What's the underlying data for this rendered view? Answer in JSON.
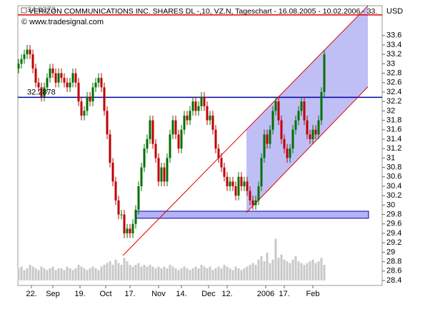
{
  "chart_data": {
    "type": "candlestick",
    "title": "VERIZON COMMUNICATIONS INC. SHARES DL -,10, VZ.N, Tageschart - 16.08.2005 - 10.02.2006 - 33.",
    "currency": "USD",
    "source": "© www.tradesignal.com",
    "up_color": "#007000",
    "down_color": "#c00000",
    "volume_color": "#c8c8c8",
    "open": [
      32.9,
      33.0,
      33.1,
      33.2,
      33.3,
      33.2,
      32.9,
      32.6,
      32.5,
      32.3,
      32.5,
      32.7,
      32.9,
      32.8,
      32.6,
      32.8,
      32.7,
      32.6,
      32.5,
      32.6,
      32.8,
      32.6,
      32.2,
      31.9,
      32.0,
      32.3,
      32.2,
      32.5,
      32.6,
      32.7,
      32.5,
      32.0,
      31.5,
      30.9,
      30.5,
      30.1,
      29.8,
      29.8,
      29.4,
      29.5,
      29.4,
      29.6,
      29.9,
      30.4,
      30.8,
      31.2,
      31.4,
      31.8,
      31.3,
      31.0,
      30.5,
      30.8,
      30.5,
      31.0,
      31.5,
      31.8,
      31.5,
      31.2,
      31.6,
      31.9,
      31.8,
      32.0,
      32.2,
      32.0,
      32.1,
      32.3,
      32.1,
      31.8,
      31.9,
      31.6,
      31.2,
      31.0,
      30.8,
      30.6,
      30.4,
      30.5,
      30.4,
      30.2,
      30.6,
      30.4,
      30.5,
      30.3,
      30.1,
      30.0,
      30.1,
      30.4,
      31.0,
      31.5,
      31.3,
      31.6,
      32.0,
      32.2,
      31.8,
      31.4,
      31.2,
      31.0,
      31.2,
      31.6,
      31.8,
      32.0,
      32.2,
      31.8,
      31.5,
      31.4,
      31.6,
      31.5,
      31.8,
      32.4
    ],
    "high": [
      33.1,
      33.2,
      33.3,
      33.4,
      33.4,
      33.3,
      33.0,
      32.7,
      32.6,
      32.6,
      32.8,
      33.0,
      33.0,
      32.9,
      32.9,
      32.9,
      32.8,
      32.7,
      32.7,
      32.9,
      32.9,
      32.7,
      32.3,
      32.1,
      32.4,
      32.4,
      32.6,
      32.7,
      32.8,
      32.8,
      32.6,
      32.1,
      31.6,
      31.0,
      30.6,
      30.2,
      29.9,
      29.9,
      29.6,
      29.6,
      29.7,
      30.0,
      30.5,
      30.9,
      31.3,
      31.5,
      31.9,
      31.9,
      31.4,
      31.1,
      30.9,
      30.9,
      31.1,
      31.6,
      31.9,
      31.9,
      31.6,
      31.7,
      32.0,
      32.0,
      32.1,
      32.3,
      32.3,
      32.2,
      32.4,
      32.4,
      32.2,
      32.0,
      32.0,
      31.7,
      31.3,
      31.1,
      30.9,
      30.7,
      30.6,
      30.6,
      30.5,
      30.7,
      30.7,
      30.6,
      30.6,
      30.4,
      30.2,
      30.2,
      30.5,
      31.1,
      31.6,
      31.6,
      31.7,
      32.1,
      32.3,
      32.3,
      31.9,
      31.5,
      31.3,
      31.3,
      31.7,
      31.9,
      32.1,
      32.3,
      32.3,
      31.9,
      31.6,
      31.7,
      31.7,
      31.9,
      32.5,
      33.3
    ],
    "low": [
      32.8,
      32.9,
      33.0,
      33.1,
      33.1,
      32.8,
      32.5,
      32.4,
      32.2,
      32.2,
      32.4,
      32.6,
      32.7,
      32.5,
      32.5,
      32.6,
      32.5,
      32.4,
      32.4,
      32.5,
      32.5,
      32.1,
      31.8,
      31.8,
      31.9,
      32.1,
      32.1,
      32.4,
      32.5,
      32.4,
      31.9,
      31.4,
      30.8,
      30.4,
      30.0,
      29.7,
      29.7,
      29.3,
      29.3,
      29.3,
      29.3,
      29.5,
      29.8,
      30.3,
      30.7,
      31.1,
      31.3,
      31.2,
      30.9,
      30.4,
      30.4,
      30.4,
      30.4,
      30.9,
      31.4,
      31.4,
      31.1,
      31.1,
      31.5,
      31.7,
      31.7,
      31.9,
      31.9,
      31.9,
      32.0,
      32.0,
      31.7,
      31.7,
      31.5,
      31.1,
      30.9,
      30.7,
      30.5,
      30.3,
      30.3,
      30.3,
      30.1,
      30.1,
      30.3,
      30.3,
      30.2,
      30.0,
      29.9,
      29.9,
      30.0,
      30.3,
      30.9,
      31.2,
      31.2,
      31.5,
      31.9,
      31.7,
      31.3,
      31.1,
      30.9,
      30.9,
      31.1,
      31.5,
      31.7,
      31.9,
      31.7,
      31.4,
      31.3,
      31.3,
      31.4,
      31.4,
      31.7,
      32.3
    ],
    "close": [
      33.0,
      33.1,
      33.2,
      33.3,
      33.2,
      32.9,
      32.6,
      32.5,
      32.3,
      32.5,
      32.7,
      32.9,
      32.8,
      32.6,
      32.8,
      32.7,
      32.6,
      32.5,
      32.6,
      32.8,
      32.6,
      32.2,
      31.9,
      32.0,
      32.3,
      32.2,
      32.5,
      32.6,
      32.7,
      32.5,
      32.0,
      31.5,
      30.9,
      30.5,
      30.1,
      29.8,
      29.8,
      29.4,
      29.5,
      29.4,
      29.6,
      29.9,
      30.4,
      30.8,
      31.2,
      31.4,
      31.8,
      31.3,
      31.0,
      30.5,
      30.8,
      30.5,
      31.0,
      31.5,
      31.8,
      31.5,
      31.2,
      31.6,
      31.9,
      31.8,
      32.0,
      32.2,
      32.0,
      32.1,
      32.3,
      32.1,
      31.8,
      31.9,
      31.6,
      31.2,
      31.0,
      30.8,
      30.6,
      30.4,
      30.5,
      30.4,
      30.2,
      30.6,
      30.4,
      30.5,
      30.3,
      30.1,
      30.0,
      30.1,
      30.4,
      31.0,
      31.5,
      31.3,
      31.6,
      32.0,
      32.2,
      31.8,
      31.4,
      31.2,
      31.0,
      31.2,
      31.6,
      31.8,
      32.0,
      32.2,
      31.8,
      31.5,
      31.4,
      31.6,
      31.5,
      31.8,
      32.4,
      33.2
    ],
    "volume": [
      7,
      8,
      6,
      7,
      9,
      8,
      7,
      6,
      8,
      7,
      6,
      7,
      8,
      6,
      7,
      7,
      6,
      8,
      7,
      6,
      7,
      9,
      8,
      7,
      6,
      7,
      8,
      7,
      6,
      8,
      9,
      10,
      11,
      9,
      12,
      10,
      9,
      13,
      11,
      9,
      8,
      9,
      10,
      8,
      9,
      8,
      9,
      8,
      7,
      8,
      7,
      8,
      7,
      9,
      8,
      7,
      6,
      7,
      8,
      7,
      6,
      7,
      8,
      7,
      9,
      8,
      7,
      8,
      6,
      7,
      8,
      7,
      9,
      8,
      7,
      6,
      8,
      7,
      6,
      7,
      8,
      9,
      10,
      9,
      12,
      14,
      11,
      16,
      10,
      12,
      24,
      13,
      15,
      12,
      11,
      10,
      12,
      14,
      11,
      10,
      9,
      10,
      11,
      12,
      10,
      11,
      13,
      9
    ],
    "vlim": [
      0,
      30
    ],
    "xlim": [
      -0.25,
      127.25
    ],
    "xticks": [
      {
        "value": 4.5,
        "label": "22."
      },
      {
        "value": 12,
        "label": "Sep"
      },
      {
        "value": 21.5,
        "label": "19."
      },
      {
        "value": 30.5,
        "label": "Oct"
      },
      {
        "value": 39,
        "label": "17."
      },
      {
        "value": 49,
        "label": "Nov"
      },
      {
        "value": 57,
        "label": "14."
      },
      {
        "value": 66.5,
        "label": "Dec"
      },
      {
        "value": 73,
        "label": "12."
      },
      {
        "value": 86.5,
        "label": "2006"
      },
      {
        "value": 93,
        "label": "17."
      },
      {
        "value": 103,
        "label": "Feb"
      }
    ],
    "ylim": [
      28.294,
      34.233
    ],
    "yticks": [
      28.4,
      28.6,
      28.8,
      29,
      29.2,
      29.4,
      29.6,
      29.8,
      30,
      30.2,
      30.4,
      30.6,
      30.8,
      31,
      31.2,
      31.4,
      31.6,
      31.8,
      32,
      32.2,
      32.4,
      32.6,
      32.8,
      33,
      33.2,
      33.4,
      33.6
    ],
    "hlines": [
      {
        "value": 32.2878,
        "color": "#0000a8"
      },
      {
        "value": 34.0373,
        "color": "#e00000"
      }
    ],
    "channel": {
      "color": "#e00000",
      "fill": "#b4b4f5",
      "upper": {
        "x": [
          36.5,
          122.25
        ],
        "y": [
          28.93,
          34.23
        ]
      },
      "lower": {
        "x": [
          79.75,
          122.25
        ],
        "y": [
          29.84,
          32.51
        ]
      }
    },
    "zone": {
      "x": [
        40.75,
        122.5
      ],
      "y": [
        29.72,
        29.87
      ],
      "fill": "#b4b4f5",
      "stroke": "#0000a8"
    }
  }
}
